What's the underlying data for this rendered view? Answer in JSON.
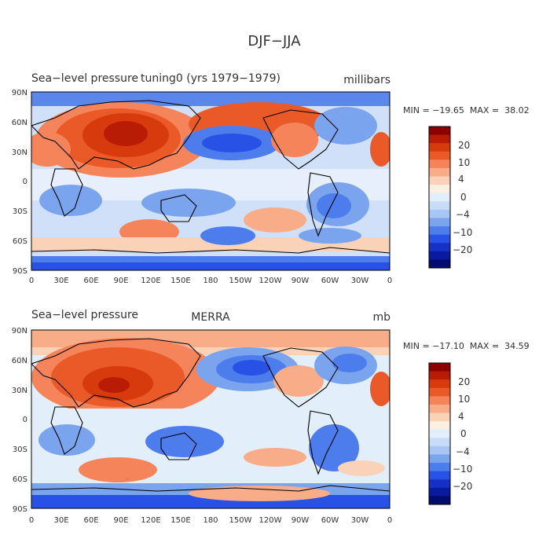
{
  "page_title": "DJF−JJA",
  "chart_data": [
    {
      "type": "heatmap",
      "id": "top",
      "title_left": "Sea−level pressure",
      "title_center": "tuning0 (yrs 1979−1979)",
      "units": "millibars",
      "stats": "MIN = −19.65  MAX =  38.02",
      "min": -19.65,
      "max": 38.02,
      "xticks": [
        "0",
        "30E",
        "60E",
        "90E",
        "120E",
        "150E",
        "180",
        "150W",
        "120W",
        "90W",
        "60W",
        "30W",
        "0"
      ],
      "yticks": [
        "90N",
        "60N",
        "30N",
        "0",
        "30S",
        "60S",
        "90S"
      ],
      "colorbar_labels": [
        "20",
        "10",
        "4",
        "0",
        "−4",
        "−10",
        "−20"
      ]
    },
    {
      "type": "heatmap",
      "id": "bottom",
      "title_left": "Sea−level pressure",
      "title_center": "MERRA",
      "units": "mb",
      "stats": "MIN = −17.10  MAX =  34.59",
      "min": -17.1,
      "max": 34.59,
      "xticks": [
        "0",
        "30E",
        "60E",
        "90E",
        "120E",
        "150E",
        "180",
        "150W",
        "120W",
        "90W",
        "60W",
        "30W",
        "0"
      ],
      "yticks": [
        "90N",
        "60N",
        "30N",
        "0",
        "30S",
        "60S",
        "90S"
      ],
      "colorbar_labels": [
        "20",
        "10",
        "4",
        "0",
        "−4",
        "−10",
        "−20"
      ]
    }
  ],
  "colorbar_colors": [
    "#8b0000",
    "#b81c04",
    "#d73b0d",
    "#ea5a28",
    "#f5845a",
    "#f8ac88",
    "#fad2b8",
    "#fbeee3",
    "#e3eefb",
    "#c8dcf8",
    "#a7c6f3",
    "#7aa4ee",
    "#4d7ded",
    "#2852e6",
    "#1530c4",
    "#0a1a9e",
    "#020b6e"
  ]
}
